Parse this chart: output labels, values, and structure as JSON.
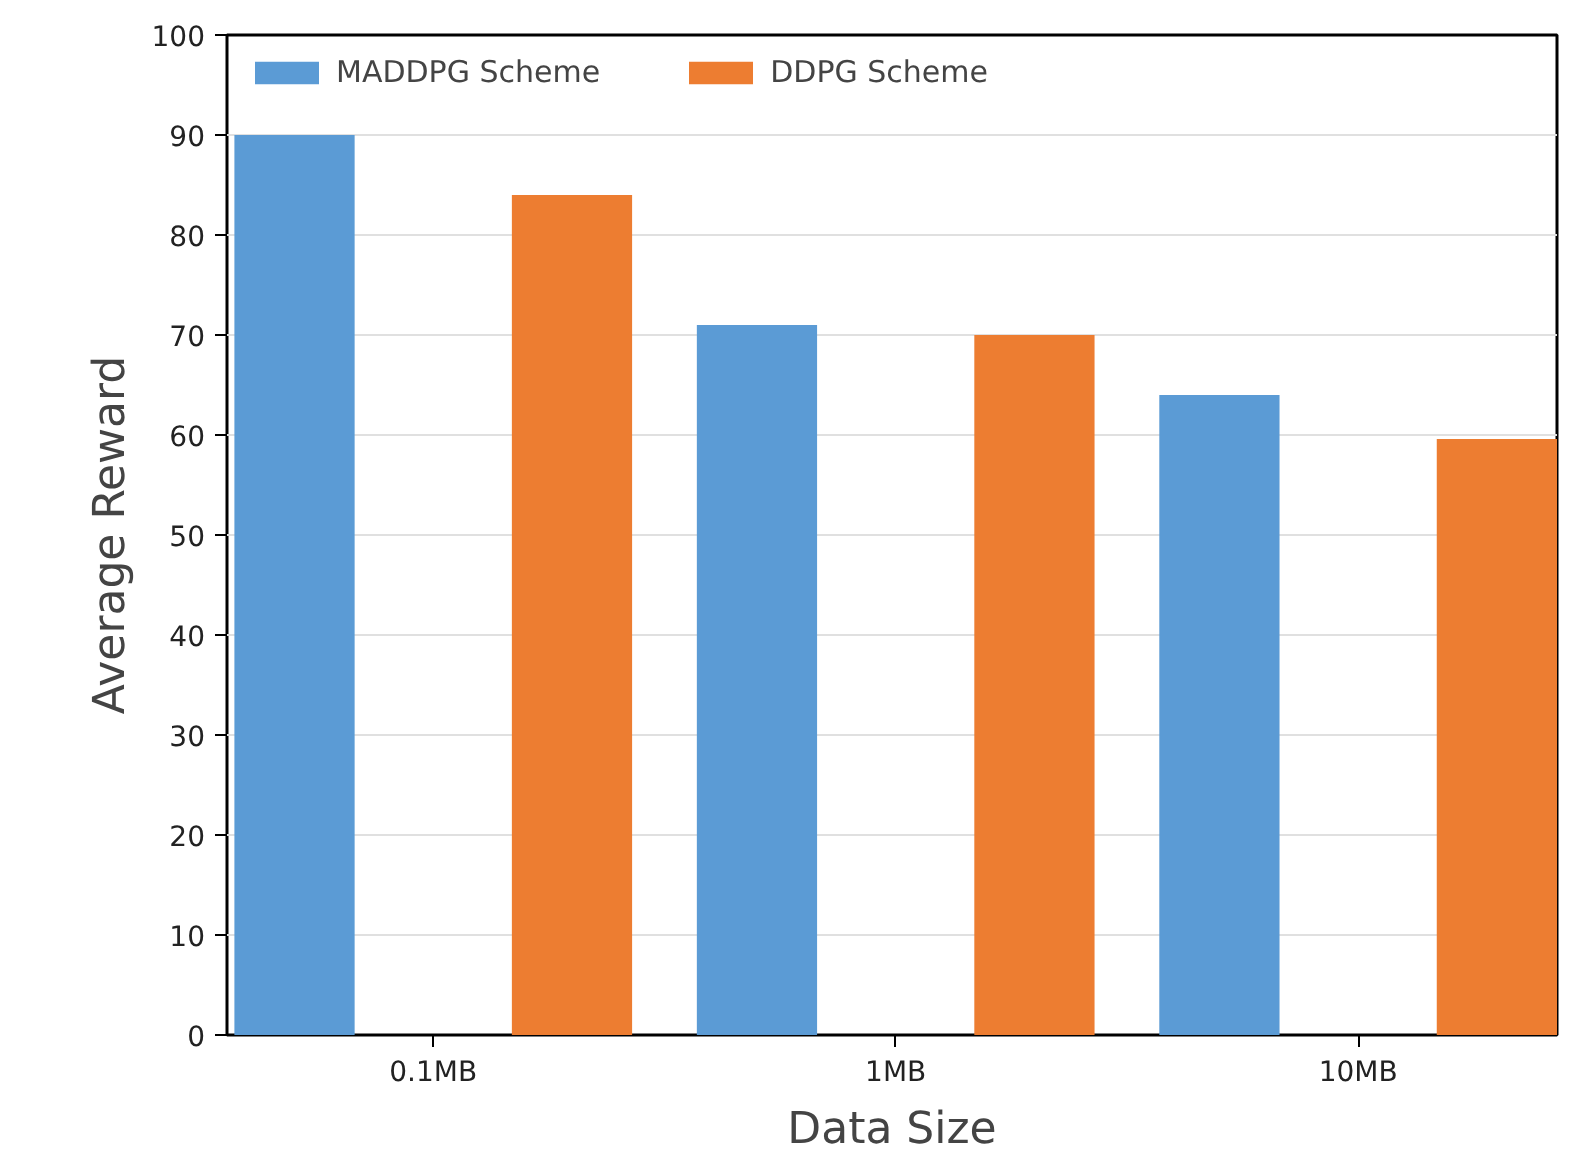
{
  "chart_data": {
    "type": "bar",
    "xlabel": "Data Size",
    "ylabel": "Average Reward",
    "categories": [
      "0.1MB",
      "1MB",
      "10MB"
    ],
    "series": [
      {
        "name": "MADDPG Scheme",
        "color": "#5b9bd5",
        "values": [
          90,
          71,
          64
        ]
      },
      {
        "name": "DDPG Scheme",
        "color": "#ed7d31",
        "values": [
          84,
          70,
          59.6
        ]
      }
    ],
    "ylim": [
      0,
      100
    ],
    "yticks": [
      0,
      10,
      20,
      30,
      40,
      50,
      60,
      70,
      80,
      90,
      100
    ],
    "grid": "y",
    "legend": "top left"
  }
}
